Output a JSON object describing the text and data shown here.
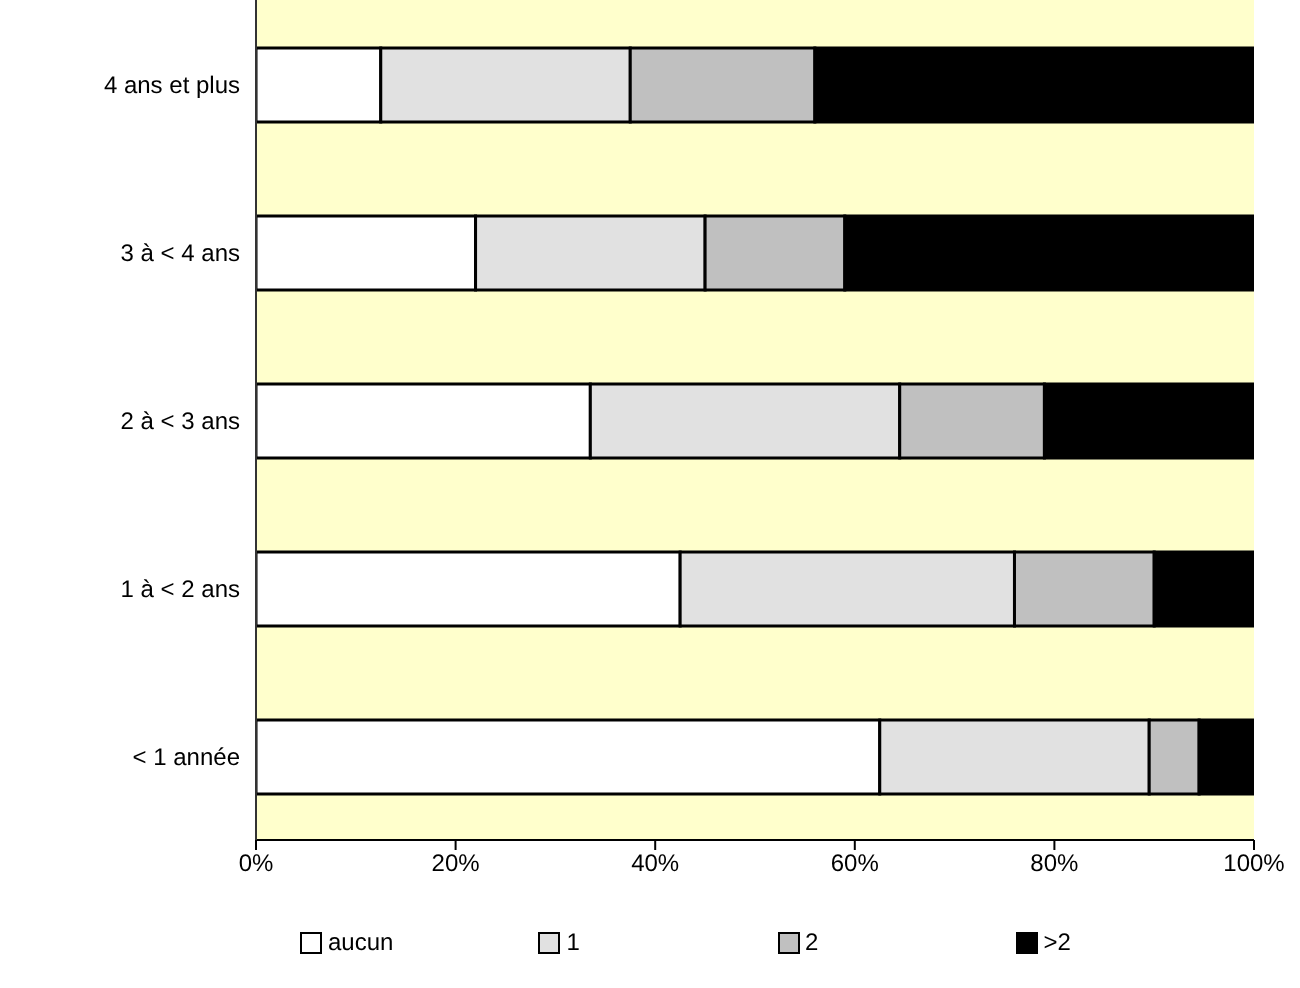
{
  "chart_data": {
    "type": "bar",
    "orientation": "horizontal",
    "stacked": true,
    "legend": "bottom",
    "categories": [
      "4 ans et plus",
      "3 à < 4 ans",
      "2 à < 3 ans",
      "1 à < 2 ans",
      "< 1 année"
    ],
    "series": [
      {
        "name": "aucun",
        "color": "#ffffff",
        "values": [
          12.5,
          22,
          33.5,
          42.5,
          62.5
        ]
      },
      {
        "name": "1",
        "color": "#e1e1e1",
        "values": [
          25,
          23,
          31,
          33.5,
          27
        ]
      },
      {
        "name": "2",
        "color": "#c0c0c0",
        "values": [
          18.5,
          14,
          14.5,
          14,
          5
        ]
      },
      {
        "name": ">2",
        "color": "#000000",
        "values": [
          44,
          41,
          21,
          10,
          5.5
        ]
      }
    ],
    "xlim": [
      0,
      100
    ],
    "xticks": [
      {
        "value": 0,
        "label": "0%"
      },
      {
        "value": 20,
        "label": "20%"
      },
      {
        "value": 40,
        "label": "40%"
      },
      {
        "value": 60,
        "label": "60%"
      },
      {
        "value": 80,
        "label": "80%"
      },
      {
        "value": 100,
        "label": "100%"
      }
    ]
  }
}
